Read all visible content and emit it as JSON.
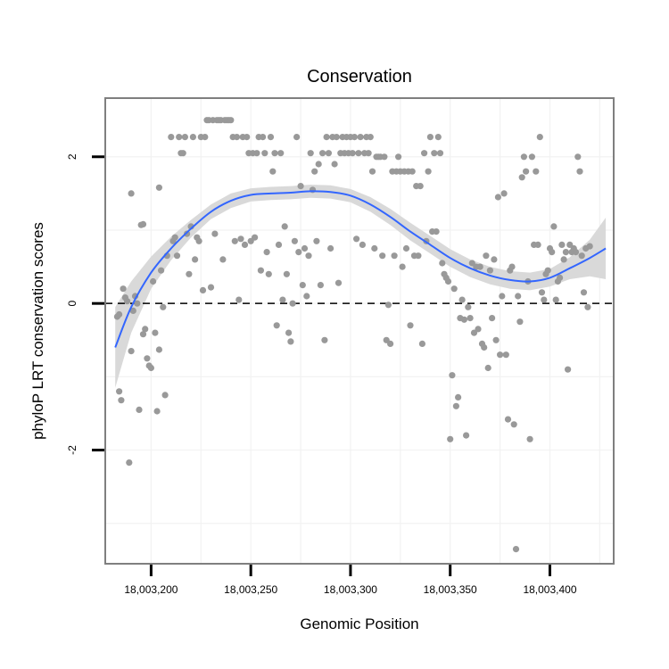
{
  "chart_data": {
    "type": "scatter",
    "title": "Conservation",
    "xlabel": "Genomic Position",
    "ylabel": "phyloP LRT conservation scores",
    "xlim": [
      18003177,
      18003432
    ],
    "ylim": [
      -3.55,
      2.8
    ],
    "x_ticks": [
      {
        "value": 18003200,
        "label": "18,003,200"
      },
      {
        "value": 18003250,
        "label": "18,003,250"
      },
      {
        "value": 18003300,
        "label": "18,003,300"
      },
      {
        "value": 18003350,
        "label": "18,003,350"
      },
      {
        "value": 18003400,
        "label": "18,003,400"
      }
    ],
    "y_ticks": [
      {
        "value": -2,
        "label": "-2"
      },
      {
        "value": 0,
        "label": "0"
      },
      {
        "value": 2,
        "label": "2"
      }
    ],
    "reference_line": {
      "y": 0,
      "style": "dashed"
    },
    "grid": true,
    "legend": "none",
    "colors": {
      "points": "#999999",
      "smooth_line": "#3366ff",
      "ribbon": "#d9d9d9",
      "panel_border": "#7f7f7f",
      "gridline": "#f2f2f2"
    },
    "points": [
      [
        18003183,
        -0.18
      ],
      [
        18003184,
        -0.15
      ],
      [
        18003184,
        -1.2
      ],
      [
        18003185,
        -1.32
      ],
      [
        18003186,
        0.2
      ],
      [
        18003187,
        0.08
      ],
      [
        18003188,
        0.03
      ],
      [
        18003189,
        -2.17
      ],
      [
        18003190,
        1.5
      ],
      [
        18003190,
        -0.65
      ],
      [
        18003191,
        -0.1
      ],
      [
        18003192,
        0.1
      ],
      [
        18003193,
        0.0
      ],
      [
        18003194,
        -1.45
      ],
      [
        18003195,
        1.07
      ],
      [
        18003196,
        1.08
      ],
      [
        18003196,
        -0.42
      ],
      [
        18003197,
        -0.35
      ],
      [
        18003198,
        -0.75
      ],
      [
        18003199,
        -0.85
      ],
      [
        18003200,
        -0.88
      ],
      [
        18003201,
        0.3
      ],
      [
        18003202,
        -0.4
      ],
      [
        18003203,
        -1.47
      ],
      [
        18003204,
        1.58
      ],
      [
        18003204,
        -0.63
      ],
      [
        18003205,
        0.45
      ],
      [
        18003206,
        -0.05
      ],
      [
        18003207,
        -1.25
      ],
      [
        18003208,
        0.65
      ],
      [
        18003210,
        2.27
      ],
      [
        18003211,
        0.85
      ],
      [
        18003212,
        0.9
      ],
      [
        18003213,
        0.65
      ],
      [
        18003214,
        2.27
      ],
      [
        18003215,
        2.05
      ],
      [
        18003216,
        2.05
      ],
      [
        18003217,
        2.27
      ],
      [
        18003218,
        0.95
      ],
      [
        18003219,
        0.4
      ],
      [
        18003220,
        1.05
      ],
      [
        18003221,
        2.27
      ],
      [
        18003222,
        0.6
      ],
      [
        18003223,
        0.9
      ],
      [
        18003224,
        0.85
      ],
      [
        18003225,
        2.27
      ],
      [
        18003226,
        0.18
      ],
      [
        18003227,
        2.27
      ],
      [
        18003228,
        2.5
      ],
      [
        18003229,
        2.5
      ],
      [
        18003230,
        0.22
      ],
      [
        18003231,
        2.5
      ],
      [
        18003232,
        0.95
      ],
      [
        18003233,
        2.5
      ],
      [
        18003234,
        2.5
      ],
      [
        18003235,
        2.5
      ],
      [
        18003236,
        0.6
      ],
      [
        18003237,
        2.5
      ],
      [
        18003238,
        2.5
      ],
      [
        18003239,
        2.5
      ],
      [
        18003240,
        2.5
      ],
      [
        18003241,
        2.27
      ],
      [
        18003242,
        0.85
      ],
      [
        18003243,
        2.27
      ],
      [
        18003244,
        0.05
      ],
      [
        18003245,
        0.88
      ],
      [
        18003246,
        2.27
      ],
      [
        18003247,
        0.8
      ],
      [
        18003248,
        2.27
      ],
      [
        18003249,
        2.05
      ],
      [
        18003250,
        0.85
      ],
      [
        18003251,
        2.05
      ],
      [
        18003252,
        0.9
      ],
      [
        18003253,
        2.05
      ],
      [
        18003254,
        2.27
      ],
      [
        18003255,
        0.45
      ],
      [
        18003256,
        2.27
      ],
      [
        18003257,
        2.05
      ],
      [
        18003258,
        0.7
      ],
      [
        18003259,
        0.4
      ],
      [
        18003260,
        2.27
      ],
      [
        18003261,
        1.8
      ],
      [
        18003262,
        2.05
      ],
      [
        18003263,
        -0.3
      ],
      [
        18003264,
        0.8
      ],
      [
        18003265,
        2.05
      ],
      [
        18003266,
        0.05
      ],
      [
        18003267,
        1.05
      ],
      [
        18003268,
        0.4
      ],
      [
        18003269,
        -0.4
      ],
      [
        18003270,
        -0.52
      ],
      [
        18003271,
        0.0
      ],
      [
        18003272,
        0.85
      ],
      [
        18003273,
        2.27
      ],
      [
        18003274,
        0.7
      ],
      [
        18003275,
        1.6
      ],
      [
        18003276,
        0.25
      ],
      [
        18003277,
        0.75
      ],
      [
        18003278,
        0.1
      ],
      [
        18003279,
        0.65
      ],
      [
        18003280,
        2.05
      ],
      [
        18003281,
        1.55
      ],
      [
        18003282,
        1.8
      ],
      [
        18003283,
        0.85
      ],
      [
        18003284,
        1.9
      ],
      [
        18003285,
        0.25
      ],
      [
        18003286,
        2.05
      ],
      [
        18003287,
        -0.5
      ],
      [
        18003288,
        2.27
      ],
      [
        18003289,
        2.05
      ],
      [
        18003290,
        0.75
      ],
      [
        18003291,
        2.27
      ],
      [
        18003292,
        1.9
      ],
      [
        18003293,
        2.27
      ],
      [
        18003294,
        0.28
      ],
      [
        18003295,
        2.05
      ],
      [
        18003296,
        2.27
      ],
      [
        18003297,
        2.05
      ],
      [
        18003298,
        2.27
      ],
      [
        18003299,
        2.05
      ],
      [
        18003300,
        2.27
      ],
      [
        18003301,
        2.05
      ],
      [
        18003302,
        2.27
      ],
      [
        18003303,
        0.88
      ],
      [
        18003304,
        2.05
      ],
      [
        18003305,
        2.27
      ],
      [
        18003306,
        0.8
      ],
      [
        18003307,
        2.05
      ],
      [
        18003308,
        2.27
      ],
      [
        18003309,
        2.05
      ],
      [
        18003310,
        2.27
      ],
      [
        18003311,
        1.8
      ],
      [
        18003312,
        0.75
      ],
      [
        18003313,
        2.0
      ],
      [
        18003314,
        2.0
      ],
      [
        18003315,
        2.0
      ],
      [
        18003316,
        0.65
      ],
      [
        18003317,
        2.0
      ],
      [
        18003318,
        -0.5
      ],
      [
        18003319,
        -0.02
      ],
      [
        18003320,
        -0.55
      ],
      [
        18003321,
        1.8
      ],
      [
        18003322,
        0.65
      ],
      [
        18003323,
        1.8
      ],
      [
        18003324,
        2.0
      ],
      [
        18003325,
        1.8
      ],
      [
        18003326,
        0.5
      ],
      [
        18003327,
        1.8
      ],
      [
        18003328,
        0.75
      ],
      [
        18003329,
        1.8
      ],
      [
        18003330,
        -0.3
      ],
      [
        18003331,
        1.8
      ],
      [
        18003332,
        0.65
      ],
      [
        18003333,
        1.6
      ],
      [
        18003334,
        0.65
      ],
      [
        18003335,
        1.6
      ],
      [
        18003336,
        -0.55
      ],
      [
        18003337,
        2.05
      ],
      [
        18003338,
        0.85
      ],
      [
        18003339,
        1.8
      ],
      [
        18003340,
        2.27
      ],
      [
        18003341,
        0.98
      ],
      [
        18003342,
        2.05
      ],
      [
        18003343,
        0.98
      ],
      [
        18003344,
        2.27
      ],
      [
        18003345,
        2.05
      ],
      [
        18003346,
        0.55
      ],
      [
        18003347,
        0.4
      ],
      [
        18003348,
        0.35
      ],
      [
        18003349,
        0.3
      ],
      [
        18003350,
        -1.85
      ],
      [
        18003351,
        -0.98
      ],
      [
        18003352,
        0.2
      ],
      [
        18003353,
        -1.4
      ],
      [
        18003354,
        -1.28
      ],
      [
        18003355,
        -0.2
      ],
      [
        18003356,
        0.05
      ],
      [
        18003357,
        -0.22
      ],
      [
        18003358,
        -1.8
      ],
      [
        18003359,
        -0.05
      ],
      [
        18003360,
        -0.2
      ],
      [
        18003361,
        0.55
      ],
      [
        18003362,
        -0.4
      ],
      [
        18003363,
        0.5
      ],
      [
        18003364,
        -0.35
      ],
      [
        18003365,
        0.5
      ],
      [
        18003366,
        -0.55
      ],
      [
        18003367,
        -0.6
      ],
      [
        18003368,
        0.65
      ],
      [
        18003369,
        -0.88
      ],
      [
        18003370,
        0.45
      ],
      [
        18003371,
        -0.2
      ],
      [
        18003372,
        0.6
      ],
      [
        18003373,
        -0.5
      ],
      [
        18003374,
        1.45
      ],
      [
        18003375,
        -0.7
      ],
      [
        18003376,
        0.1
      ],
      [
        18003377,
        1.5
      ],
      [
        18003378,
        -0.7
      ],
      [
        18003379,
        -1.58
      ],
      [
        18003380,
        0.45
      ],
      [
        18003381,
        0.5
      ],
      [
        18003382,
        -1.65
      ],
      [
        18003383,
        -3.35
      ],
      [
        18003384,
        0.1
      ],
      [
        18003385,
        -0.25
      ],
      [
        18003386,
        1.72
      ],
      [
        18003387,
        2.0
      ],
      [
        18003388,
        1.8
      ],
      [
        18003389,
        0.3
      ],
      [
        18003390,
        -1.85
      ],
      [
        18003391,
        2.0
      ],
      [
        18003392,
        0.8
      ],
      [
        18003393,
        1.8
      ],
      [
        18003394,
        0.8
      ],
      [
        18003395,
        2.27
      ],
      [
        18003396,
        0.15
      ],
      [
        18003397,
        0.05
      ],
      [
        18003398,
        0.4
      ],
      [
        18003399,
        0.45
      ],
      [
        18003400,
        0.75
      ],
      [
        18003401,
        0.7
      ],
      [
        18003402,
        1.05
      ],
      [
        18003403,
        0.05
      ],
      [
        18003404,
        0.3
      ],
      [
        18003405,
        0.35
      ],
      [
        18003406,
        0.8
      ],
      [
        18003407,
        0.6
      ],
      [
        18003408,
        0.7
      ],
      [
        18003409,
        -0.9
      ],
      [
        18003410,
        0.8
      ],
      [
        18003411,
        0.7
      ],
      [
        18003412,
        0.75
      ],
      [
        18003413,
        0.7
      ],
      [
        18003414,
        2.0
      ],
      [
        18003415,
        1.8
      ],
      [
        18003416,
        0.65
      ],
      [
        18003417,
        0.15
      ],
      [
        18003418,
        0.75
      ],
      [
        18003419,
        -0.05
      ],
      [
        18003420,
        0.78
      ]
    ],
    "smooth": [
      [
        18003182,
        -0.6
      ],
      [
        18003190,
        -0.05
      ],
      [
        18003200,
        0.42
      ],
      [
        18003210,
        0.75
      ],
      [
        18003220,
        1.02
      ],
      [
        18003230,
        1.25
      ],
      [
        18003240,
        1.4
      ],
      [
        18003250,
        1.48
      ],
      [
        18003260,
        1.5
      ],
      [
        18003270,
        1.51
      ],
      [
        18003280,
        1.53
      ],
      [
        18003290,
        1.52
      ],
      [
        18003300,
        1.47
      ],
      [
        18003310,
        1.35
      ],
      [
        18003320,
        1.18
      ],
      [
        18003330,
        0.98
      ],
      [
        18003340,
        0.8
      ],
      [
        18003350,
        0.62
      ],
      [
        18003360,
        0.48
      ],
      [
        18003370,
        0.38
      ],
      [
        18003380,
        0.32
      ],
      [
        18003390,
        0.3
      ],
      [
        18003400,
        0.35
      ],
      [
        18003410,
        0.48
      ],
      [
        18003420,
        0.62
      ],
      [
        18003428,
        0.75
      ]
    ],
    "ribbon_halfwidth": [
      0.55,
      0.35,
      0.22,
      0.16,
      0.12,
      0.1,
      0.1,
      0.09,
      0.09,
      0.09,
      0.09,
      0.09,
      0.09,
      0.1,
      0.11,
      0.12,
      0.12,
      0.12,
      0.12,
      0.12,
      0.12,
      0.12,
      0.12,
      0.15,
      0.25,
      0.42
    ]
  }
}
